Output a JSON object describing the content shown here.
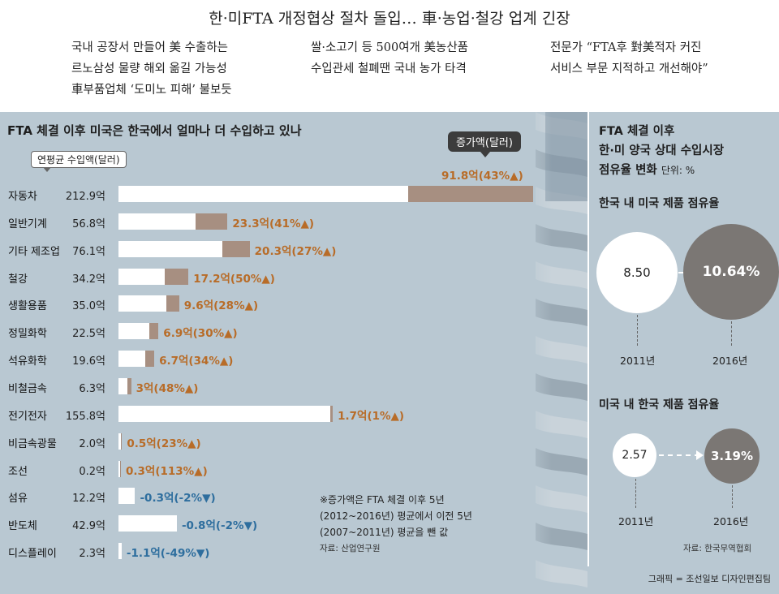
{
  "headline": "한·미FTA 개정협상 절차 돌입… 車·농업·철강 업계 긴장",
  "subheads": {
    "col1": [
      "국내 공장서 만들어 美 수출하는",
      "르노삼성 물량 해외 옮길 가능성",
      "車부품업체 ‘도미노 피해’ 불보듯"
    ],
    "col2": [
      "쌀·소고기 등 500여개 美농산품",
      "수입관세 철폐땐 국내 농가 타격"
    ],
    "col3": [
      "전문가 “FTA후 對美적자 커진",
      "서비스 부문 지적하고 개선해야”"
    ]
  },
  "left_title": "FTA 체결 이후 미국은 한국에서 얼마나 더 수입하고 있나",
  "badge_avg": "연평균 수입액(달러)",
  "badge_inc": "증가액(달러)",
  "note": [
    "※증가액은 FTA 체결 이후 5년",
    "(2012~2016년) 평균에서 이전 5년",
    "(2007~2011년) 평균을 뺀 값"
  ],
  "source_left": "자료: 산업연구원",
  "colors": {
    "panel": "#b9c8d2",
    "increase_bar": "#a78f81",
    "positive_text": "#b86c28",
    "negative_text": "#2e6e9e",
    "circle_gray": "#7b7774"
  },
  "chart_data": [
    {
      "type": "bar",
      "orientation": "horizontal",
      "title": "FTA 체결 이후 미국은 한국에서 얼마나 더 수입하고 있나",
      "unit": "억 달러",
      "rows": [
        {
          "category": "자동차",
          "avg_label": "212.9억",
          "avg": 212.9,
          "inc_label": "91.8억(43%▲)",
          "inc": 91.8
        },
        {
          "category": "일반기계",
          "avg_label": "56.8억",
          "avg": 56.8,
          "inc_label": "23.3억(41%▲)",
          "inc": 23.3
        },
        {
          "category": "기타 제조업",
          "avg_label": "76.1억",
          "avg": 76.1,
          "inc_label": "20.3억(27%▲)",
          "inc": 20.3
        },
        {
          "category": "철강",
          "avg_label": "34.2억",
          "avg": 34.2,
          "inc_label": "17.2억(50%▲)",
          "inc": 17.2
        },
        {
          "category": "생활용품",
          "avg_label": "35.0억",
          "avg": 35.0,
          "inc_label": "9.6억(28%▲)",
          "inc": 9.6
        },
        {
          "category": "정밀화학",
          "avg_label": "22.5억",
          "avg": 22.5,
          "inc_label": "6.9억(30%▲)",
          "inc": 6.9
        },
        {
          "category": "석유화학",
          "avg_label": "19.6억",
          "avg": 19.6,
          "inc_label": "6.7억(34%▲)",
          "inc": 6.7
        },
        {
          "category": "비철금속",
          "avg_label": "6.3억",
          "avg": 6.3,
          "inc_label": "3억(48%▲)",
          "inc": 3.0
        },
        {
          "category": "전기전자",
          "avg_label": "155.8억",
          "avg": 155.8,
          "inc_label": "1.7억(1%▲)",
          "inc": 1.7
        },
        {
          "category": "비금속광물",
          "avg_label": "2.0억",
          "avg": 2.0,
          "inc_label": "0.5억(23%▲)",
          "inc": 0.5
        },
        {
          "category": "조선",
          "avg_label": "0.2억",
          "avg": 0.2,
          "inc_label": "0.3억(113%▲)",
          "inc": 0.3
        },
        {
          "category": "섬유",
          "avg_label": "12.2억",
          "avg": 12.2,
          "inc_label": "-0.3억(-2%▼)",
          "inc": -0.3
        },
        {
          "category": "반도체",
          "avg_label": "42.9억",
          "avg": 42.9,
          "inc_label": "-0.8억(-2%▼)",
          "inc": -0.8
        },
        {
          "category": "디스플레이",
          "avg_label": "2.3억",
          "avg": 2.3,
          "inc_label": "-1.1억(-49%▼)",
          "inc": -1.1
        }
      ]
    },
    {
      "type": "bubble",
      "title": "한국 내 미국 제품 점유율",
      "unit": "%",
      "x": [
        "2011년",
        "2016년"
      ],
      "values": [
        8.5,
        10.64
      ],
      "labels": [
        "8.50",
        "10.64%"
      ]
    },
    {
      "type": "bubble",
      "title": "미국 내 한국 제품 점유율",
      "unit": "%",
      "x": [
        "2011년",
        "2016년"
      ],
      "values": [
        2.57,
        3.19
      ],
      "labels": [
        "2.57",
        "3.19%"
      ]
    }
  ],
  "right_title": [
    "FTA 체결 이후",
    "한·미 양국 상대 수입시장",
    "점유율 변화"
  ],
  "right_unit": "단위: %",
  "source_right": "자료: 한국무역협회",
  "credit": "그래픽 = 조선일보 디자인편집팀"
}
